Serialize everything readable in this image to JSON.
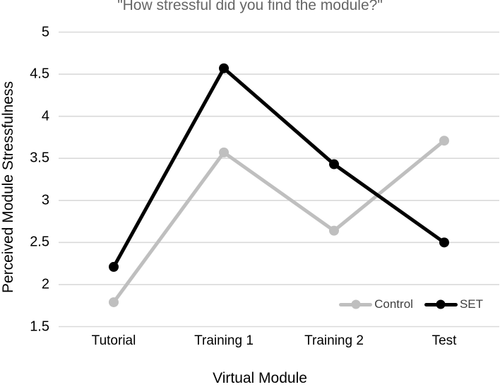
{
  "chart_data": {
    "type": "line",
    "title": "\"How stressful did you find the module?\"",
    "xlabel": "Virtual Module",
    "ylabel": "Perceived Module Stressfulness",
    "categories": [
      "Tutorial",
      "Training 1",
      "Training 2",
      "Test"
    ],
    "series": [
      {
        "name": "Control",
        "color": "#bfbfbf",
        "values": [
          1.79,
          3.57,
          2.64,
          3.71
        ]
      },
      {
        "name": "SET",
        "color": "#000000",
        "values": [
          2.21,
          4.57,
          3.43,
          2.5
        ]
      }
    ],
    "ylim": [
      1.5,
      5
    ],
    "ytick_step": 0.5,
    "yticks": [
      "5",
      "4.5",
      "4",
      "3.5",
      "3",
      "2.5",
      "2",
      "1.5"
    ],
    "grid": "horizontal",
    "legend_position": "inside-bottom-right",
    "colors": {
      "title_text": "#666666",
      "gridline": "#d9d9d9",
      "axis_text": "#000000",
      "legend_text": "#404040",
      "background": "#ffffff"
    }
  }
}
